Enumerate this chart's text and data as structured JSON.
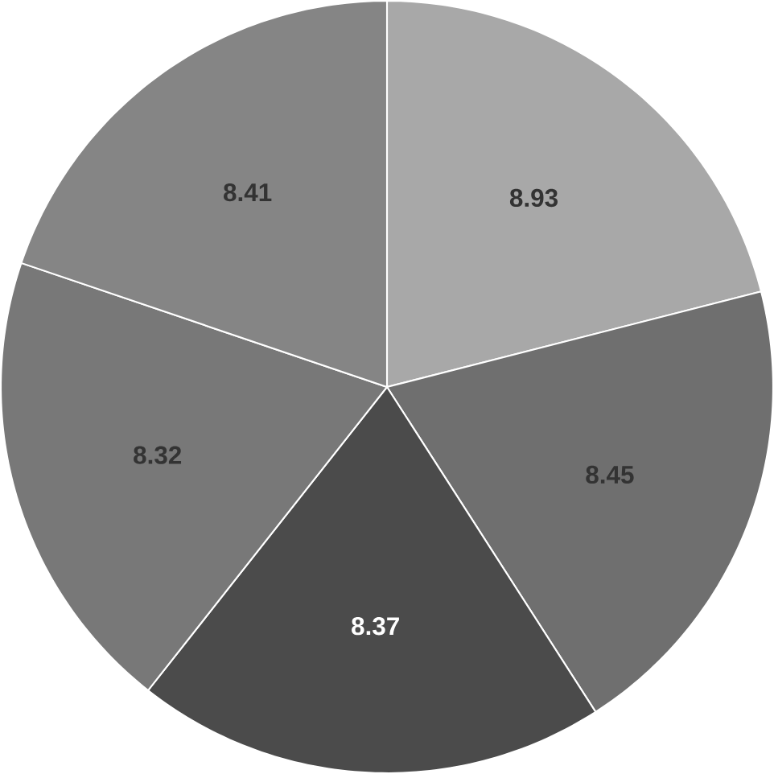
{
  "chart_data": {
    "type": "pie",
    "categories": [
      null,
      null,
      null,
      null,
      null
    ],
    "values": [
      8.93,
      8.45,
      8.37,
      8.32,
      8.41
    ],
    "colors": [
      "#a8a8a8",
      "#6f6f6f",
      "#4b4b4b",
      "#787878",
      "#858585"
    ],
    "data_labels": true
  }
}
